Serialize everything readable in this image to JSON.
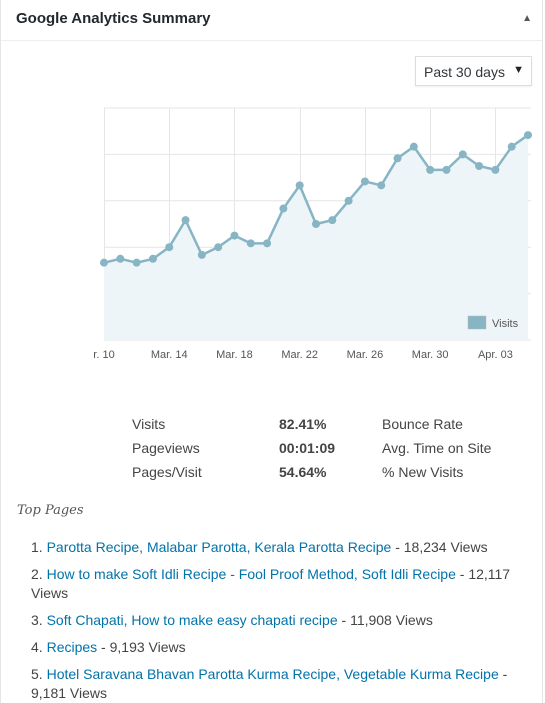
{
  "widget": {
    "title": "Google Analytics Summary",
    "toggle_icon": "▲",
    "period": {
      "selected": "Past 30 days",
      "arrow": "▼"
    }
  },
  "chart_data": {
    "type": "area",
    "series": [
      {
        "name": "Visits",
        "values": [
          50,
          51,
          50,
          51,
          54,
          61,
          52,
          54,
          57,
          55,
          55,
          64,
          70,
          60,
          61,
          66,
          71,
          70,
          77,
          80,
          74,
          74,
          78,
          75,
          74,
          80,
          83
        ]
      }
    ],
    "x_ticks": [
      "r. 10",
      "Mar. 14",
      "Mar. 18",
      "Mar. 22",
      "Mar. 26",
      "Mar. 30",
      "Apr. 03"
    ],
    "ylim": [
      30,
      90
    ],
    "grid": true,
    "legend": "bottom-right",
    "color": "#87b5c4"
  },
  "stats": [
    {
      "label": "Visits",
      "value": "82.41%",
      "metric": "Bounce Rate"
    },
    {
      "label": "Pageviews",
      "value": "00:01:09",
      "metric": "Avg. Time on Site"
    },
    {
      "label": "Pages/Visit",
      "value": "54.64%",
      "metric": "% New Visits"
    }
  ],
  "top_pages": {
    "title": "Top Pages",
    "items": [
      {
        "num": "1.",
        "title": "Parotta Recipe, Malabar Parotta, Kerala Parotta Recipe",
        "views": " - 18,234 Views"
      },
      {
        "num": "2.",
        "title": "How to make Soft Idli Recipe - Fool Proof Method, Soft Idli Recipe",
        "views": " - 12,117 Views"
      },
      {
        "num": "3.",
        "title": "Soft Chapati, How to make easy chapati recipe",
        "views": " - 11,908 Views"
      },
      {
        "num": "4.",
        "title": "Recipes",
        "views": " - 9,193 Views"
      },
      {
        "num": "5.",
        "title": "Hotel Saravana Bhavan Parotta Kurma Recipe, Vegetable Kurma Recipe",
        "views": " - 9,181 Views"
      }
    ]
  }
}
